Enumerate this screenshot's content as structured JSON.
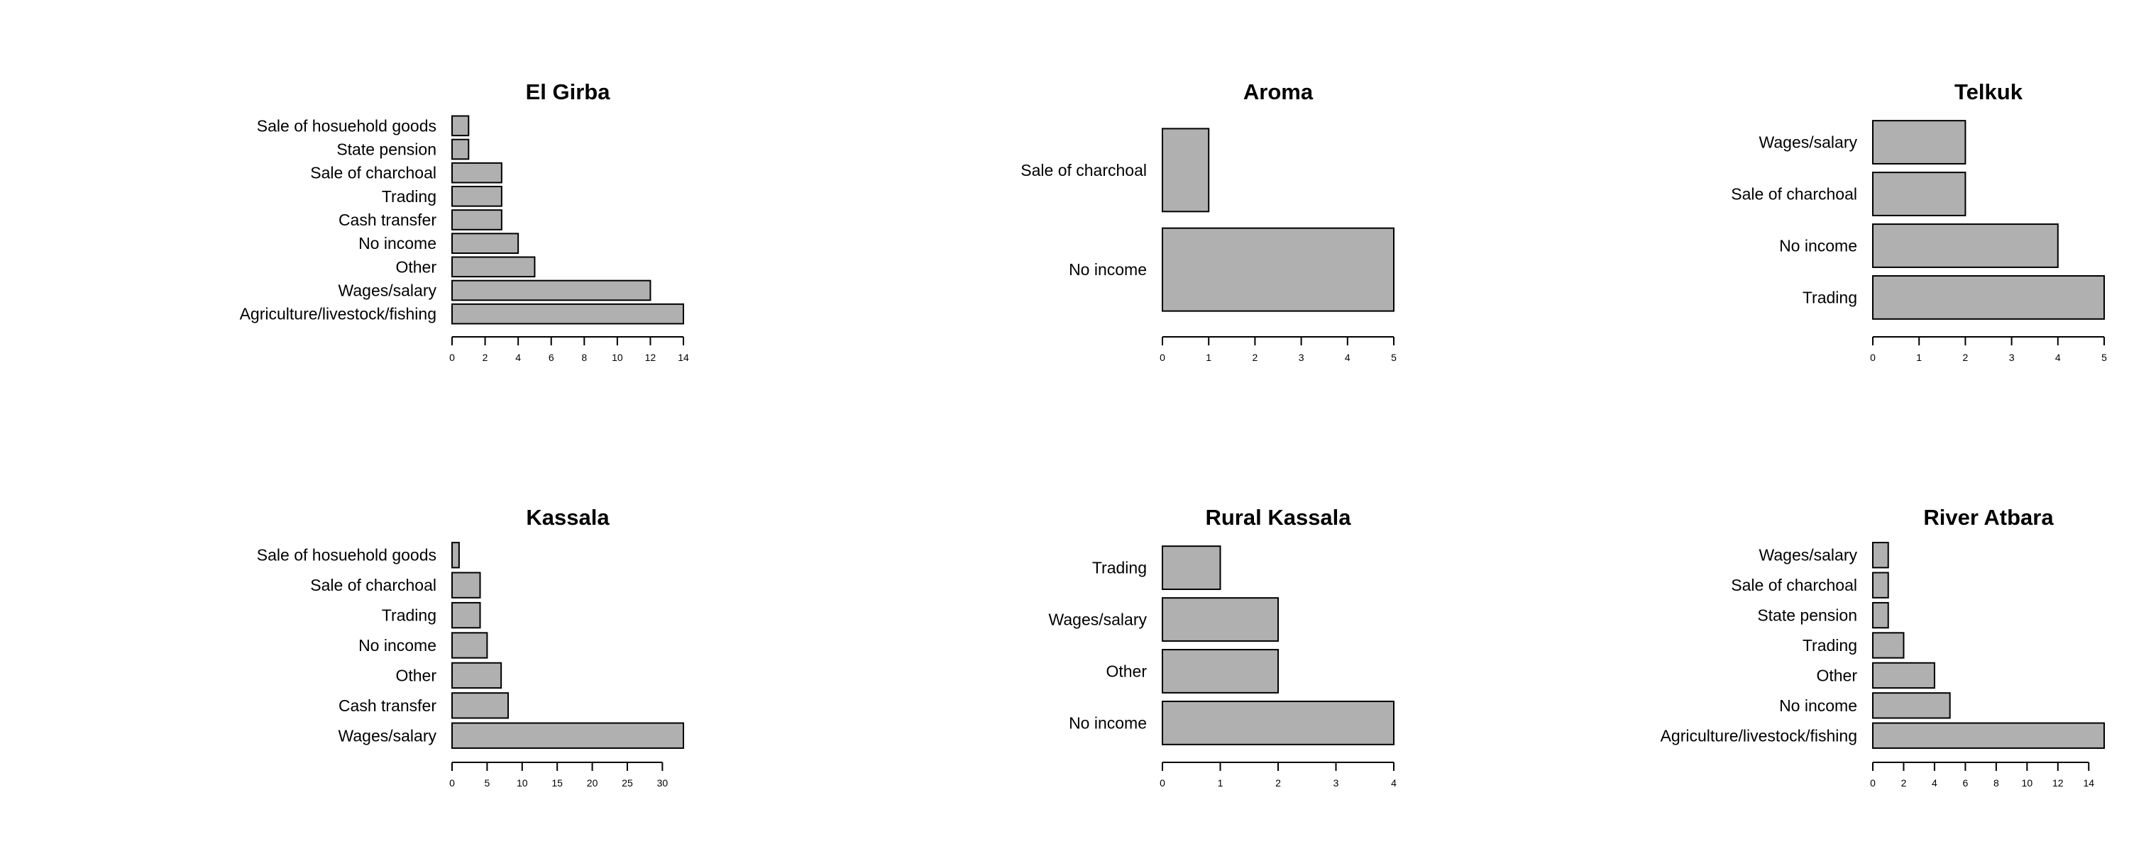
{
  "chart_data": [
    {
      "type": "bar",
      "orientation": "horizontal",
      "title": "El Girba",
      "categories": [
        "Agriculture/livestock/fishing",
        "Wages/salary",
        "Other",
        "No income",
        "Cash transfer",
        "Trading",
        "Sale of charchoal",
        "State pension",
        "Sale of hosuehold goods"
      ],
      "values": [
        14,
        12,
        5,
        4,
        3,
        3,
        3,
        1,
        1
      ],
      "xlim": [
        0,
        14
      ],
      "ticks": [
        0,
        2,
        4,
        6,
        8,
        10,
        12,
        14
      ],
      "grid": false
    },
    {
      "type": "bar",
      "orientation": "horizontal",
      "title": "Aroma",
      "categories": [
        "No income",
        "Sale of charchoal"
      ],
      "values": [
        5,
        1
      ],
      "xlim": [
        0,
        5
      ],
      "ticks": [
        0,
        1,
        2,
        3,
        4,
        5
      ],
      "grid": false
    },
    {
      "type": "bar",
      "orientation": "horizontal",
      "title": "Telkuk",
      "categories": [
        "Trading",
        "No income",
        "Sale of charchoal",
        "Wages/salary"
      ],
      "values": [
        5,
        4,
        2,
        2
      ],
      "xlim": [
        0,
        5
      ],
      "ticks": [
        0,
        1,
        2,
        3,
        4,
        5
      ],
      "grid": false
    },
    {
      "type": "bar",
      "orientation": "horizontal",
      "title": "Kassala",
      "categories": [
        "Wages/salary",
        "Cash transfer",
        "Other",
        "No income",
        "Trading",
        "Sale of charchoal",
        "Sale of hosuehold goods"
      ],
      "values": [
        33,
        8,
        7,
        5,
        4,
        4,
        1
      ],
      "xlim": [
        0,
        33
      ],
      "ticks": [
        0,
        5,
        10,
        15,
        20,
        25,
        30
      ],
      "grid": false
    },
    {
      "type": "bar",
      "orientation": "horizontal",
      "title": "Rural Kassala",
      "categories": [
        "No income",
        "Other",
        "Wages/salary",
        "Trading"
      ],
      "values": [
        4,
        2,
        2,
        1
      ],
      "xlim": [
        0,
        4
      ],
      "ticks": [
        0,
        1,
        2,
        3,
        4
      ],
      "grid": false
    },
    {
      "type": "bar",
      "orientation": "horizontal",
      "title": "River Atbara",
      "categories": [
        "Agriculture/livestock/fishing",
        "No income",
        "Other",
        "Trading",
        "State pension",
        "Sale of charchoal",
        "Wages/salary"
      ],
      "values": [
        15,
        5,
        4,
        2,
        1,
        1,
        1
      ],
      "xlim": [
        0,
        15
      ],
      "ticks": [
        0,
        2,
        4,
        6,
        8,
        10,
        12,
        14
      ],
      "grid": false
    }
  ]
}
